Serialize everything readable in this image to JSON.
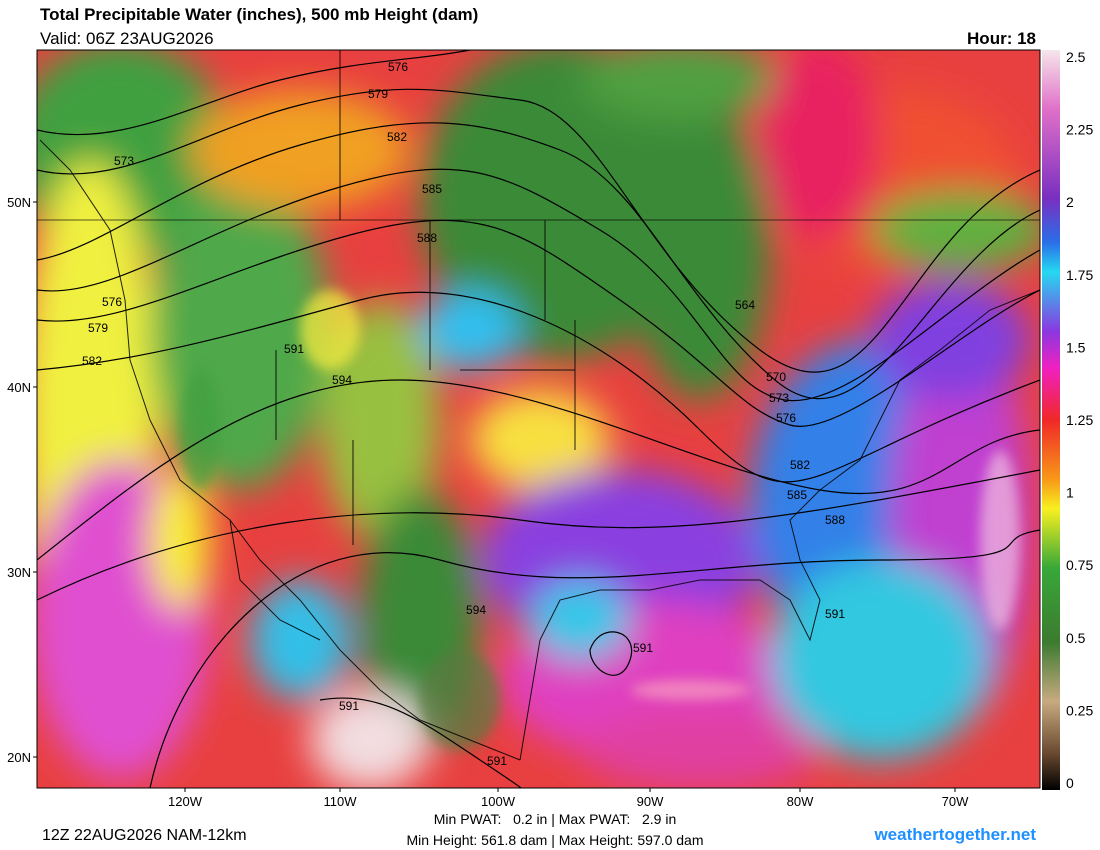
{
  "header": {
    "title": "Total Precipitable Water (inches), 500 mb Height (dam)",
    "valid": "Valid: 06Z 23AUG2026",
    "hour": "Hour: 18"
  },
  "colorbar": {
    "labels": [
      "2.5",
      "2.25",
      "2",
      "1.75",
      "1.5",
      "1.25",
      "1",
      "0.75",
      "0.5",
      "0.25",
      "0"
    ]
  },
  "map": {
    "lat_labels": [
      "50N",
      "40N",
      "30N",
      "20N"
    ],
    "lon_labels": [
      "120W",
      "110W",
      "100W",
      "90W",
      "80W",
      "70W"
    ],
    "contour_labels": [
      "576",
      "579",
      "582",
      "585",
      "588",
      "573",
      "576",
      "579",
      "582",
      "591",
      "594",
      "564",
      "570",
      "573",
      "576",
      "582",
      "585",
      "588",
      "594",
      "591",
      "591",
      "591",
      "591"
    ]
  },
  "footer": {
    "run": "12Z 22AUG2026 NAM-12km",
    "pwat": "Min PWAT:   0.2 in | Max PWAT:   2.9 in",
    "height": "Min Height: 561.8 dam | Max Height: 597.0 dam",
    "brand": "weathertogether.net"
  }
}
